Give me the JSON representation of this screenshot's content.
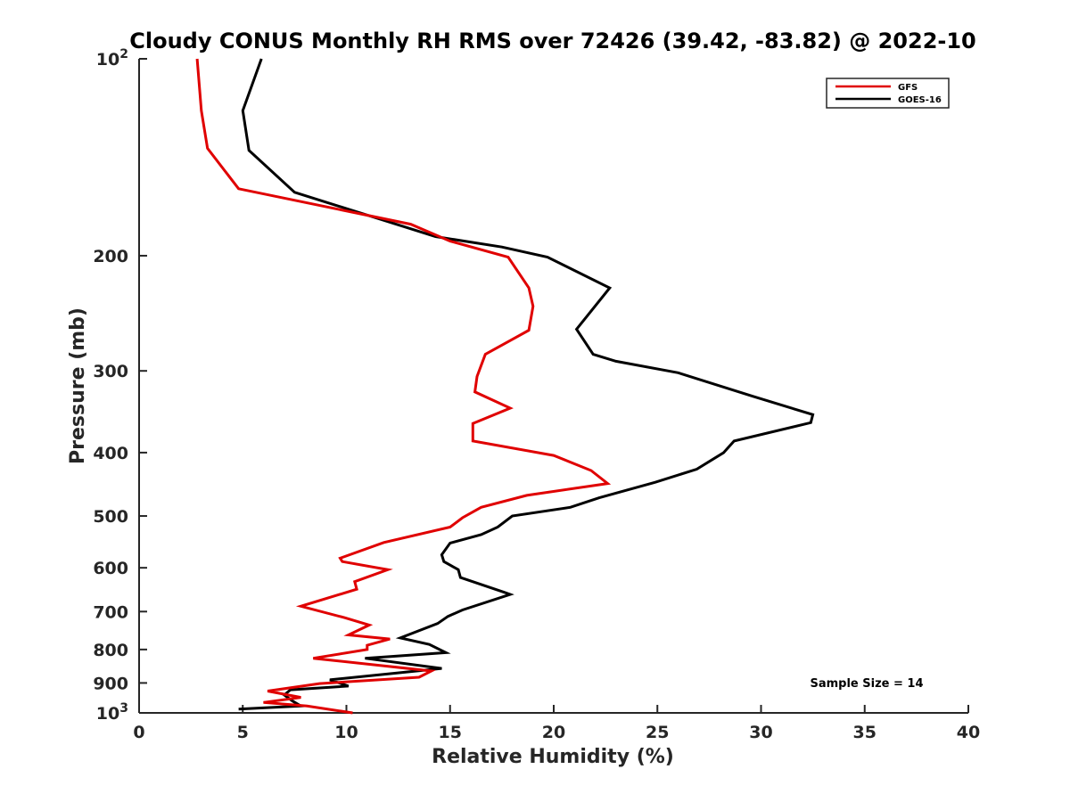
{
  "chart_data": {
    "type": "line",
    "title": "Cloudy CONUS Monthly RH RMS over 72426 (39.42, -83.82) @ 2022-10",
    "xlabel": "Relative Humidity (%)",
    "ylabel": "Pressure (mb)",
    "xlim": [
      0,
      40
    ],
    "ylim": [
      100,
      1000
    ],
    "yscale": "log",
    "yreversed": true,
    "xticks": [
      0,
      5,
      10,
      15,
      20,
      25,
      30,
      35,
      40
    ],
    "xtick_labels": [
      "0",
      "5",
      "10",
      "15",
      "20",
      "25",
      "30",
      "35",
      "40"
    ],
    "yticks": [
      100,
      200,
      300,
      400,
      500,
      600,
      700,
      800,
      900,
      1000
    ],
    "ytick_labels": [
      {
        "base": "10",
        "exp": "2"
      },
      {
        "base": "200",
        "exp": ""
      },
      {
        "base": "300",
        "exp": ""
      },
      {
        "base": "400",
        "exp": ""
      },
      {
        "base": "500",
        "exp": ""
      },
      {
        "base": "600",
        "exp": ""
      },
      {
        "base": "700",
        "exp": ""
      },
      {
        "base": "800",
        "exp": ""
      },
      {
        "base": "900",
        "exp": ""
      },
      {
        "base": "10",
        "exp": "3"
      }
    ],
    "legend_position": "top-right",
    "annotation": "Sample Size = 14",
    "series": [
      {
        "name": "GFS",
        "color": "#e00000",
        "points": [
          [
            2.8,
            100
          ],
          [
            3.0,
            120
          ],
          [
            3.3,
            137
          ],
          [
            4.8,
            158
          ],
          [
            13.1,
            179
          ],
          [
            15.0,
            190
          ],
          [
            17.8,
            201
          ],
          [
            18.8,
            224
          ],
          [
            19.0,
            239
          ],
          [
            18.8,
            260
          ],
          [
            16.7,
            283
          ],
          [
            16.3,
            306
          ],
          [
            16.2,
            323
          ],
          [
            17.9,
            342
          ],
          [
            16.1,
            361
          ],
          [
            16.1,
            384
          ],
          [
            20.0,
            404
          ],
          [
            21.8,
            426
          ],
          [
            22.6,
            446
          ],
          [
            18.7,
            465
          ],
          [
            16.5,
            485
          ],
          [
            15.6,
            503
          ],
          [
            15.0,
            520
          ],
          [
            11.8,
            549
          ],
          [
            9.7,
            580
          ],
          [
            9.8,
            587
          ],
          [
            12.0,
            604
          ],
          [
            10.4,
            630
          ],
          [
            10.5,
            647
          ],
          [
            7.8,
            687
          ],
          [
            9.9,
            715
          ],
          [
            11.1,
            734
          ],
          [
            10.1,
            760
          ],
          [
            12.1,
            771
          ],
          [
            11.0,
            788
          ],
          [
            11.0,
            800
          ],
          [
            8.4,
            825
          ],
          [
            14.1,
            863
          ],
          [
            13.5,
            882
          ],
          [
            8.7,
            902
          ],
          [
            6.2,
            926
          ],
          [
            7.8,
            947
          ],
          [
            6.0,
            964
          ],
          [
            8.1,
            976
          ],
          [
            10.3,
            1000
          ]
        ]
      },
      {
        "name": "GOES-16",
        "color": "#000000",
        "points": [
          [
            5.9,
            100
          ],
          [
            5.0,
            120
          ],
          [
            5.3,
            138
          ],
          [
            7.5,
            160
          ],
          [
            14.3,
            187
          ],
          [
            17.5,
            194
          ],
          [
            19.7,
            201
          ],
          [
            22.7,
            224
          ],
          [
            21.1,
            259
          ],
          [
            21.9,
            283
          ],
          [
            23.0,
            290
          ],
          [
            26.0,
            302
          ],
          [
            29.6,
            328
          ],
          [
            32.5,
            350
          ],
          [
            32.4,
            360
          ],
          [
            28.7,
            384
          ],
          [
            28.2,
            400
          ],
          [
            26.9,
            424
          ],
          [
            24.9,
            444
          ],
          [
            22.2,
            469
          ],
          [
            20.8,
            485
          ],
          [
            18.0,
            500
          ],
          [
            17.3,
            520
          ],
          [
            16.5,
            534
          ],
          [
            15.0,
            550
          ],
          [
            14.6,
            573
          ],
          [
            14.7,
            587
          ],
          [
            15.4,
            604
          ],
          [
            15.5,
            621
          ],
          [
            17.6,
            654
          ],
          [
            17.9,
            659
          ],
          [
            15.6,
            696
          ],
          [
            14.9,
            712
          ],
          [
            14.4,
            730
          ],
          [
            12.6,
            768
          ],
          [
            14.0,
            786
          ],
          [
            14.8,
            809
          ],
          [
            10.9,
            825
          ],
          [
            14.6,
            855
          ],
          [
            9.2,
            890
          ],
          [
            10.1,
            910
          ],
          [
            7.3,
            922
          ],
          [
            7.0,
            939
          ],
          [
            7.4,
            959
          ],
          [
            7.8,
            976
          ],
          [
            4.8,
            987
          ]
        ]
      }
    ]
  }
}
